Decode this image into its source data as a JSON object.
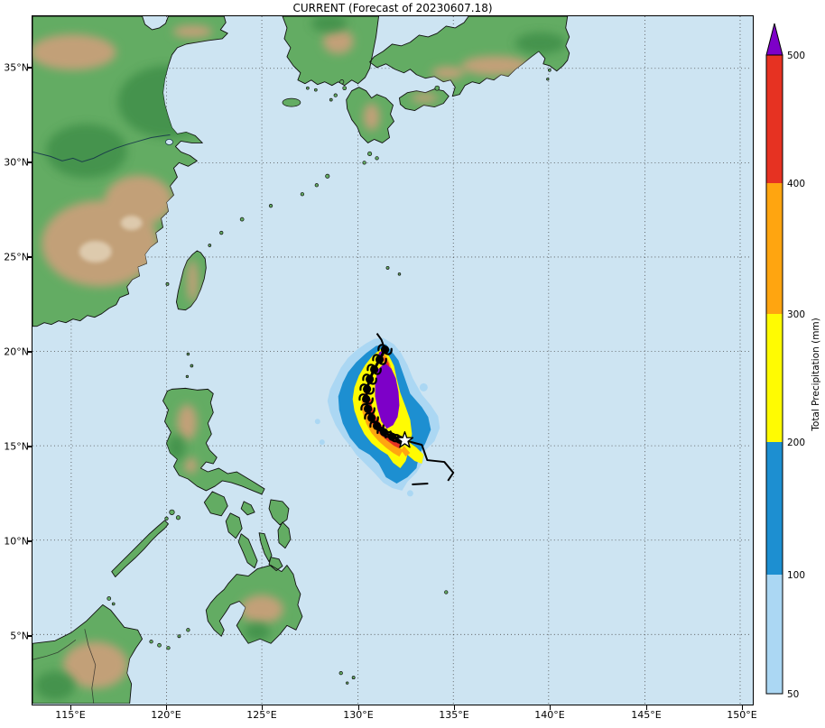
{
  "title": "CURRENT (Forecast of 20230607.18)",
  "map": {
    "x_ticks": [
      "115°E",
      "120°E",
      "125°E",
      "130°E",
      "135°E",
      "140°E",
      "145°E",
      "150°E"
    ],
    "y_ticks": [
      "35°N",
      "30°N",
      "25°N",
      "20°N",
      "15°N",
      "10°N",
      "5°N"
    ],
    "ocean_color": "#cde4f2",
    "land_color": "#63ac63",
    "highland_color": "#c2a078",
    "lowland_dark_color": "#3f8f49",
    "coastline_color": "#101010",
    "grid_color": "#4a4a4a"
  },
  "storm": {
    "current_position_marker": "white-star",
    "track_symbol": "typhoon-symbol",
    "track_color": "#000000",
    "marker_fill": "#ffffff"
  },
  "colorbar": {
    "label": "Total Precipitation (mm)",
    "tick_labels": [
      "500",
      "400",
      "300",
      "200",
      "100",
      "50"
    ],
    "levels": [
      {
        "range": "50-100",
        "color": "#abd7f3"
      },
      {
        "range": "100-200",
        "color": "#1d8fd1"
      },
      {
        "range": "200-300",
        "color": "#fffb02"
      },
      {
        "range": "300-400",
        "color": "#ffa510"
      },
      {
        "range": "400-500",
        "color": "#e63222"
      },
      {
        "range": ">500",
        "color": "#7d00c8"
      }
    ]
  }
}
